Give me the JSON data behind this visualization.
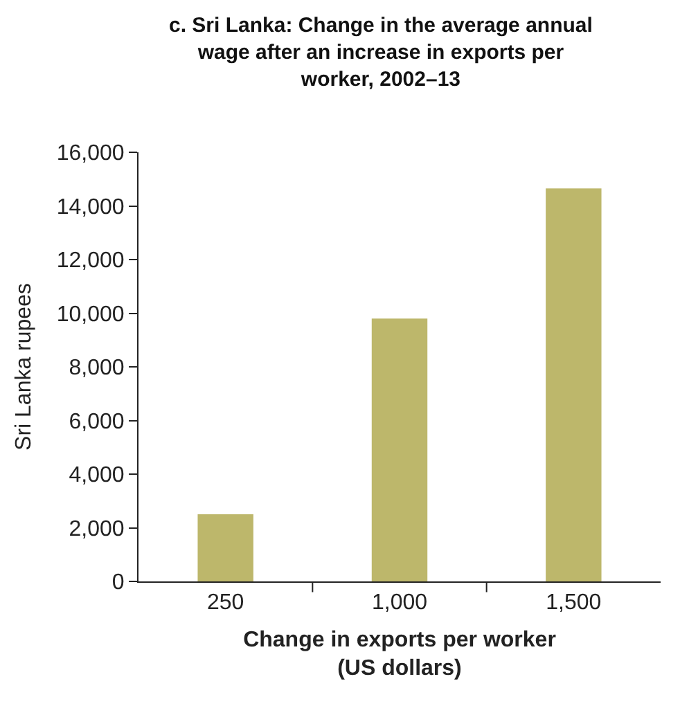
{
  "chart_data": {
    "type": "bar",
    "title": "c. Sri Lanka: Change in the average annual wage after an increase in exports per worker, 2002–13",
    "xlabel": "Change in exports per worker (US dollars)",
    "ylabel": "Sri Lanka rupees",
    "categories": [
      "250",
      "1,000",
      "1,500"
    ],
    "values": [
      2500,
      9800,
      14650
    ],
    "color": "#bdb76b",
    "ylim": [
      0,
      16000
    ],
    "yticks": [
      {
        "value": 0,
        "label": "0"
      },
      {
        "value": 2000,
        "label": "2,000"
      },
      {
        "value": 4000,
        "label": "4,000"
      },
      {
        "value": 6000,
        "label": "6,000"
      },
      {
        "value": 8000,
        "label": "8,000"
      },
      {
        "value": 10000,
        "label": "10,000"
      },
      {
        "value": 12000,
        "label": "12,000"
      },
      {
        "value": 14000,
        "label": "14,000"
      },
      {
        "value": 16000,
        "label": "16,000"
      }
    ],
    "grid": false
  }
}
